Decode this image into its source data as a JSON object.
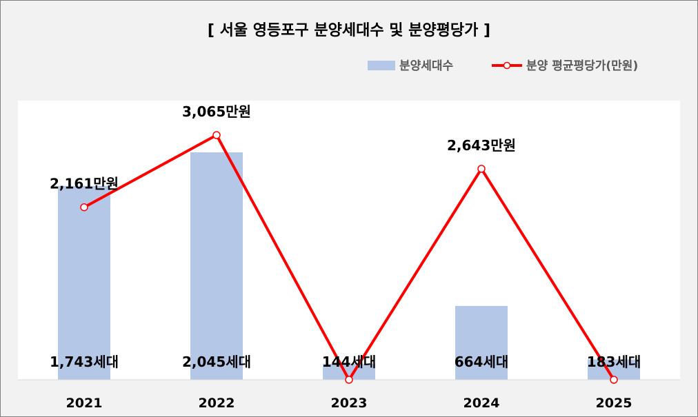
{
  "chart_data": {
    "type": "bar",
    "title": "[ 서울 영등포구 분양세대수 및 분양평당가 ]",
    "categories": [
      "2021",
      "2022",
      "2023",
      "2024",
      "2025"
    ],
    "series": [
      {
        "name": "분양세대수",
        "type": "bar",
        "values": [
          1743,
          2045,
          144,
          664,
          183
        ],
        "labels": [
          "1,743세대",
          "2,045세대",
          "144세대",
          "664세대",
          "183세대"
        ],
        "color": "#b4c7e7"
      },
      {
        "name": "분양 평균평당가(만원)",
        "type": "line",
        "values": [
          2161,
          3065,
          0,
          2643,
          0
        ],
        "labels": [
          "2,161만원",
          "3,065만원",
          "",
          "2,643만원",
          ""
        ],
        "color": "#ff0000"
      }
    ],
    "legend_position": "top-right",
    "grid": false
  }
}
